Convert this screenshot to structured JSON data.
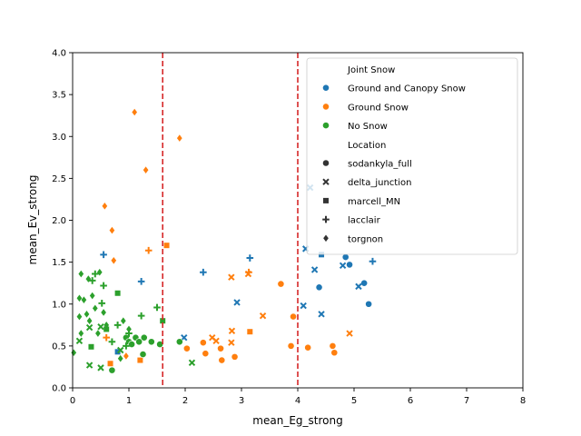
{
  "chart_data": {
    "type": "scatter",
    "title": "",
    "xlabel": "mean_Eg_strong",
    "ylabel": "mean_Ev_strong",
    "xlim": [
      0,
      8
    ],
    "ylim": [
      0,
      4
    ],
    "xticks": [
      "0",
      "1",
      "2",
      "3",
      "4",
      "5",
      "6",
      "7",
      "8"
    ],
    "yticks": [
      "0.0",
      "0.5",
      "1.0",
      "1.5",
      "2.0",
      "2.5",
      "3.0",
      "3.5",
      "4.0"
    ],
    "grid": false,
    "vlines": [
      {
        "x": 1.6,
        "color": "#d62728",
        "style": "dashed"
      },
      {
        "x": 4.0,
        "color": "#d62728",
        "style": "dashed"
      }
    ],
    "legend": {
      "placement": "top-right",
      "hue_title": "Joint Snow",
      "hue_entries": [
        {
          "label": "Ground and Canopy Snow",
          "color": "#1f77b4"
        },
        {
          "label": "Ground Snow",
          "color": "#ff7f0e"
        },
        {
          "label": "No Snow",
          "color": "#2ca02c"
        }
      ],
      "style_title": "Location",
      "style_entries": [
        {
          "label": "sodankyla_full",
          "marker": "circle"
        },
        {
          "label": "delta_junction",
          "marker": "x"
        },
        {
          "label": "marcell_MN",
          "marker": "square"
        },
        {
          "label": "lacclair",
          "marker": "plus"
        },
        {
          "label": "torgnon",
          "marker": "diamond"
        }
      ]
    },
    "series": [
      {
        "name": "Ground and Canopy Snow",
        "color": "#1f77b4",
        "points": [
          {
            "x": 4.85,
            "y": 1.56,
            "marker": "circle"
          },
          {
            "x": 4.92,
            "y": 1.47,
            "marker": "circle"
          },
          {
            "x": 5.18,
            "y": 1.25,
            "marker": "circle"
          },
          {
            "x": 5.26,
            "y": 1.0,
            "marker": "circle"
          },
          {
            "x": 4.38,
            "y": 1.2,
            "marker": "circle"
          },
          {
            "x": 2.92,
            "y": 1.02,
            "marker": "x"
          },
          {
            "x": 4.1,
            "y": 0.98,
            "marker": "x"
          },
          {
            "x": 4.3,
            "y": 1.41,
            "marker": "x"
          },
          {
            "x": 4.42,
            "y": 0.88,
            "marker": "x"
          },
          {
            "x": 5.08,
            "y": 1.21,
            "marker": "x"
          },
          {
            "x": 4.8,
            "y": 1.46,
            "marker": "x"
          },
          {
            "x": 4.22,
            "y": 2.39,
            "marker": "x"
          },
          {
            "x": 4.14,
            "y": 1.66,
            "marker": "x"
          },
          {
            "x": 1.98,
            "y": 0.6,
            "marker": "x"
          },
          {
            "x": 4.42,
            "y": 1.59,
            "marker": "square"
          },
          {
            "x": 0.8,
            "y": 0.43,
            "marker": "square"
          },
          {
            "x": 0.55,
            "y": 1.59,
            "marker": "plus"
          },
          {
            "x": 1.22,
            "y": 1.27,
            "marker": "plus"
          },
          {
            "x": 2.32,
            "y": 1.38,
            "marker": "plus"
          },
          {
            "x": 3.15,
            "y": 1.55,
            "marker": "plus"
          },
          {
            "x": 5.33,
            "y": 1.51,
            "marker": "plus"
          }
        ]
      },
      {
        "name": "Ground Snow",
        "color": "#ff7f0e",
        "points": [
          {
            "x": 2.03,
            "y": 0.47,
            "marker": "circle"
          },
          {
            "x": 2.32,
            "y": 0.54,
            "marker": "circle"
          },
          {
            "x": 2.36,
            "y": 0.41,
            "marker": "circle"
          },
          {
            "x": 2.63,
            "y": 0.47,
            "marker": "circle"
          },
          {
            "x": 2.65,
            "y": 0.33,
            "marker": "circle"
          },
          {
            "x": 2.88,
            "y": 0.37,
            "marker": "circle"
          },
          {
            "x": 3.7,
            "y": 1.24,
            "marker": "circle"
          },
          {
            "x": 3.88,
            "y": 0.5,
            "marker": "circle"
          },
          {
            "x": 3.92,
            "y": 0.85,
            "marker": "circle"
          },
          {
            "x": 4.18,
            "y": 0.48,
            "marker": "circle"
          },
          {
            "x": 4.62,
            "y": 0.5,
            "marker": "circle"
          },
          {
            "x": 4.65,
            "y": 0.42,
            "marker": "circle"
          },
          {
            "x": 2.48,
            "y": 0.6,
            "marker": "x"
          },
          {
            "x": 2.55,
            "y": 0.56,
            "marker": "x"
          },
          {
            "x": 2.82,
            "y": 1.32,
            "marker": "x"
          },
          {
            "x": 2.83,
            "y": 0.68,
            "marker": "x"
          },
          {
            "x": 2.82,
            "y": 0.54,
            "marker": "x"
          },
          {
            "x": 3.12,
            "y": 1.36,
            "marker": "x"
          },
          {
            "x": 3.38,
            "y": 0.86,
            "marker": "x"
          },
          {
            "x": 4.92,
            "y": 0.65,
            "marker": "x"
          },
          {
            "x": 1.67,
            "y": 1.7,
            "marker": "square"
          },
          {
            "x": 3.15,
            "y": 0.67,
            "marker": "square"
          },
          {
            "x": 0.67,
            "y": 0.29,
            "marker": "square"
          },
          {
            "x": 1.2,
            "y": 0.33,
            "marker": "square"
          },
          {
            "x": 1.35,
            "y": 1.64,
            "marker": "plus"
          },
          {
            "x": 3.13,
            "y": 1.38,
            "marker": "plus"
          },
          {
            "x": 0.6,
            "y": 0.6,
            "marker": "plus"
          },
          {
            "x": 1.1,
            "y": 3.29,
            "marker": "diamond"
          },
          {
            "x": 1.3,
            "y": 2.6,
            "marker": "diamond"
          },
          {
            "x": 1.9,
            "y": 2.98,
            "marker": "diamond"
          },
          {
            "x": 0.57,
            "y": 2.17,
            "marker": "diamond"
          },
          {
            "x": 0.7,
            "y": 1.88,
            "marker": "diamond"
          },
          {
            "x": 0.73,
            "y": 1.52,
            "marker": "diamond"
          },
          {
            "x": 0.95,
            "y": 0.38,
            "marker": "diamond"
          }
        ]
      },
      {
        "name": "No Snow",
        "color": "#2ca02c",
        "points": [
          {
            "x": 0.7,
            "y": 0.21,
            "marker": "circle"
          },
          {
            "x": 0.95,
            "y": 0.6,
            "marker": "circle"
          },
          {
            "x": 1.0,
            "y": 0.55,
            "marker": "circle"
          },
          {
            "x": 1.05,
            "y": 0.52,
            "marker": "circle"
          },
          {
            "x": 1.12,
            "y": 0.6,
            "marker": "circle"
          },
          {
            "x": 1.18,
            "y": 0.55,
            "marker": "circle"
          },
          {
            "x": 1.25,
            "y": 0.4,
            "marker": "circle"
          },
          {
            "x": 1.27,
            "y": 0.6,
            "marker": "circle"
          },
          {
            "x": 1.4,
            "y": 0.55,
            "marker": "circle"
          },
          {
            "x": 1.55,
            "y": 0.52,
            "marker": "circle"
          },
          {
            "x": 1.9,
            "y": 0.55,
            "marker": "circle"
          },
          {
            "x": 0.3,
            "y": 0.27,
            "marker": "x"
          },
          {
            "x": 0.5,
            "y": 0.24,
            "marker": "x"
          },
          {
            "x": 0.12,
            "y": 0.56,
            "marker": "x"
          },
          {
            "x": 0.3,
            "y": 0.72,
            "marker": "x"
          },
          {
            "x": 0.5,
            "y": 0.73,
            "marker": "x"
          },
          {
            "x": 2.12,
            "y": 0.3,
            "marker": "x"
          },
          {
            "x": 0.85,
            "y": 0.45,
            "marker": "x"
          },
          {
            "x": 0.33,
            "y": 0.49,
            "marker": "square"
          },
          {
            "x": 0.8,
            "y": 1.13,
            "marker": "square"
          },
          {
            "x": 1.6,
            "y": 0.8,
            "marker": "square"
          },
          {
            "x": 0.6,
            "y": 0.7,
            "marker": "square"
          },
          {
            "x": 0.55,
            "y": 1.22,
            "marker": "plus"
          },
          {
            "x": 0.35,
            "y": 1.28,
            "marker": "plus"
          },
          {
            "x": 0.52,
            "y": 1.01,
            "marker": "plus"
          },
          {
            "x": 0.4,
            "y": 1.36,
            "marker": "plus"
          },
          {
            "x": 0.7,
            "y": 0.55,
            "marker": "plus"
          },
          {
            "x": 0.8,
            "y": 0.75,
            "marker": "plus"
          },
          {
            "x": 1.0,
            "y": 0.65,
            "marker": "plus"
          },
          {
            "x": 1.22,
            "y": 0.86,
            "marker": "plus"
          },
          {
            "x": 1.5,
            "y": 0.96,
            "marker": "plus"
          },
          {
            "x": 0.95,
            "y": 0.5,
            "marker": "plus"
          },
          {
            "x": 0.15,
            "y": 1.36,
            "marker": "diamond"
          },
          {
            "x": 0.28,
            "y": 1.3,
            "marker": "diamond"
          },
          {
            "x": 0.48,
            "y": 1.38,
            "marker": "diamond"
          },
          {
            "x": 0.12,
            "y": 1.07,
            "marker": "diamond"
          },
          {
            "x": 0.2,
            "y": 1.05,
            "marker": "diamond"
          },
          {
            "x": 0.35,
            "y": 1.1,
            "marker": "diamond"
          },
          {
            "x": 0.4,
            "y": 0.95,
            "marker": "diamond"
          },
          {
            "x": 0.25,
            "y": 0.88,
            "marker": "diamond"
          },
          {
            "x": 0.12,
            "y": 0.85,
            "marker": "diamond"
          },
          {
            "x": 0.3,
            "y": 0.8,
            "marker": "diamond"
          },
          {
            "x": 0.45,
            "y": 0.65,
            "marker": "diamond"
          },
          {
            "x": 0.6,
            "y": 0.75,
            "marker": "diamond"
          },
          {
            "x": 0.9,
            "y": 0.8,
            "marker": "diamond"
          },
          {
            "x": 1.0,
            "y": 0.7,
            "marker": "diamond"
          },
          {
            "x": 0.85,
            "y": 0.35,
            "marker": "diamond"
          },
          {
            "x": 0.02,
            "y": 0.42,
            "marker": "diamond"
          },
          {
            "x": 0.15,
            "y": 0.65,
            "marker": "diamond"
          },
          {
            "x": 0.55,
            "y": 0.9,
            "marker": "diamond"
          }
        ]
      }
    ]
  }
}
